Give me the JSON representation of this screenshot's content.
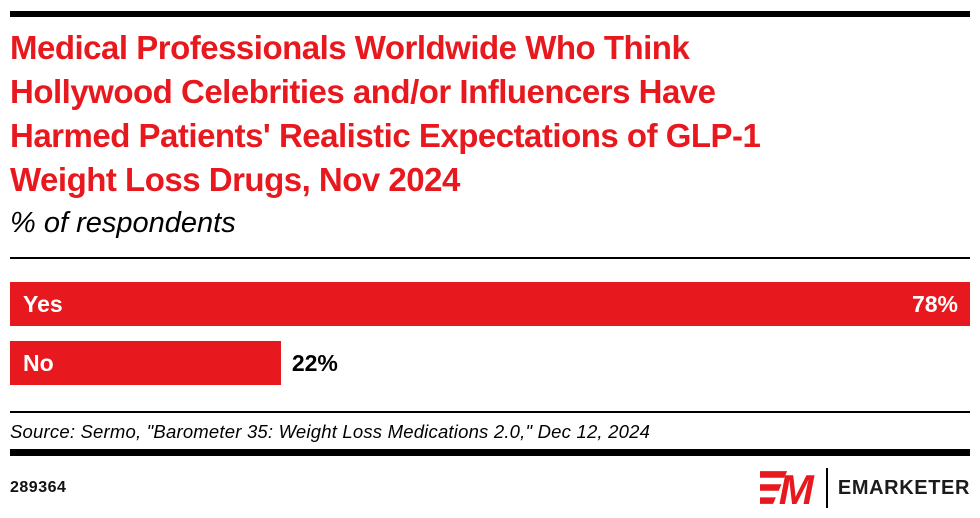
{
  "meta": {
    "accent_red": "#e8191e",
    "rule_black": "#000000",
    "background": "#ffffff"
  },
  "header": {
    "title_lines": [
      "Medical Professionals Worldwide Who Think",
      "Hollywood Celebrities and/or Influencers Have",
      "Harmed Patients' Realistic Expectations of GLP-1",
      "Weight Loss Drugs, Nov 2024"
    ],
    "subtitle": "% of respondents"
  },
  "chart_data": {
    "type": "bar",
    "orientation": "horizontal",
    "title": "Medical Professionals Worldwide Who Think Hollywood Celebrities and/or Influencers Have Harmed Patients' Realistic Expectations of GLP-1 Weight Loss Drugs, Nov 2024",
    "subtitle": "% of respondents",
    "categories": [
      "Yes",
      "No"
    ],
    "values": [
      78,
      22
    ],
    "value_labels": [
      "78%",
      "22%"
    ],
    "unit": "%",
    "bar_color": "#e8191e",
    "scale_max": 78,
    "grid": false,
    "legend": false,
    "value_label_placement": [
      "inside-right",
      "outside-right"
    ]
  },
  "footer": {
    "source": "Source: Sermo, \"Barometer 35: Weight Loss Medications 2.0,\" Dec 12, 2024",
    "chart_id": "289364",
    "brand": "EMARKETER",
    "logo_icon": "em-monogram"
  }
}
